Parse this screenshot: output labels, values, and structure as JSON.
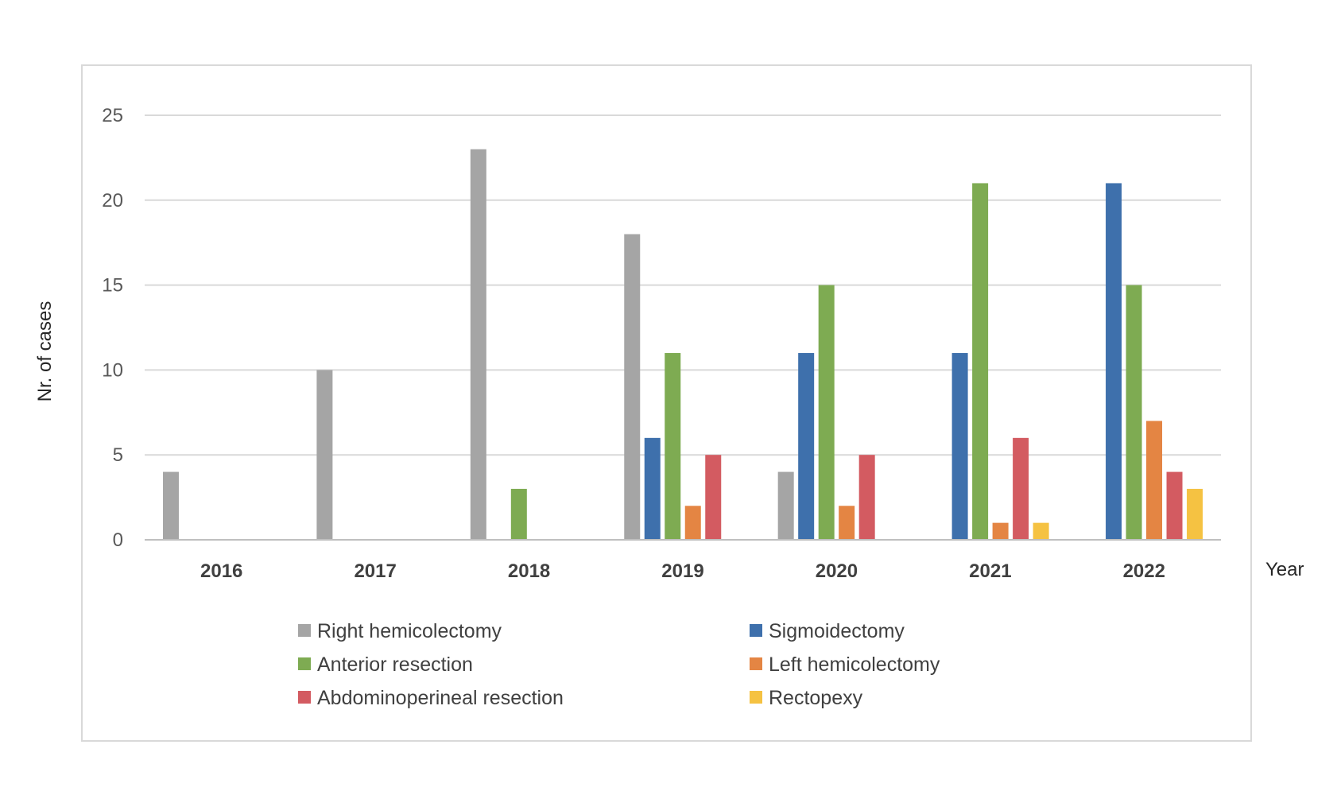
{
  "chart_data": {
    "type": "bar",
    "title": "",
    "xlabel": "Year",
    "ylabel": "Nr. of cases",
    "ylim": [
      0,
      25
    ],
    "yticks": [
      0,
      5,
      10,
      15,
      20,
      25
    ],
    "grid": true,
    "legend_position": "bottom",
    "categories": [
      "2016",
      "2017",
      "2018",
      "2019",
      "2020",
      "2021",
      "2022"
    ],
    "series": [
      {
        "name": "Right hemicolectomy",
        "color": "#a5a5a5",
        "values": [
          4,
          10,
          23,
          18,
          4,
          0,
          0
        ]
      },
      {
        "name": "Sigmoidectomy",
        "color": "#3e70ac",
        "values": [
          0,
          0,
          0,
          6,
          11,
          11,
          21
        ]
      },
      {
        "name": "Anterior resection",
        "color": "#7eab52",
        "values": [
          0,
          0,
          3,
          11,
          15,
          21,
          15
        ]
      },
      {
        "name": "Left hemicolectomy",
        "color": "#e48543",
        "values": [
          0,
          0,
          0,
          2,
          2,
          1,
          7
        ]
      },
      {
        "name": "Abdominoperineal resection",
        "color": "#d35b61",
        "values": [
          0,
          0,
          0,
          5,
          5,
          6,
          4
        ]
      },
      {
        "name": "Rectopexy",
        "color": "#f5c242",
        "values": [
          0,
          0,
          0,
          0,
          0,
          1,
          3
        ]
      }
    ]
  }
}
